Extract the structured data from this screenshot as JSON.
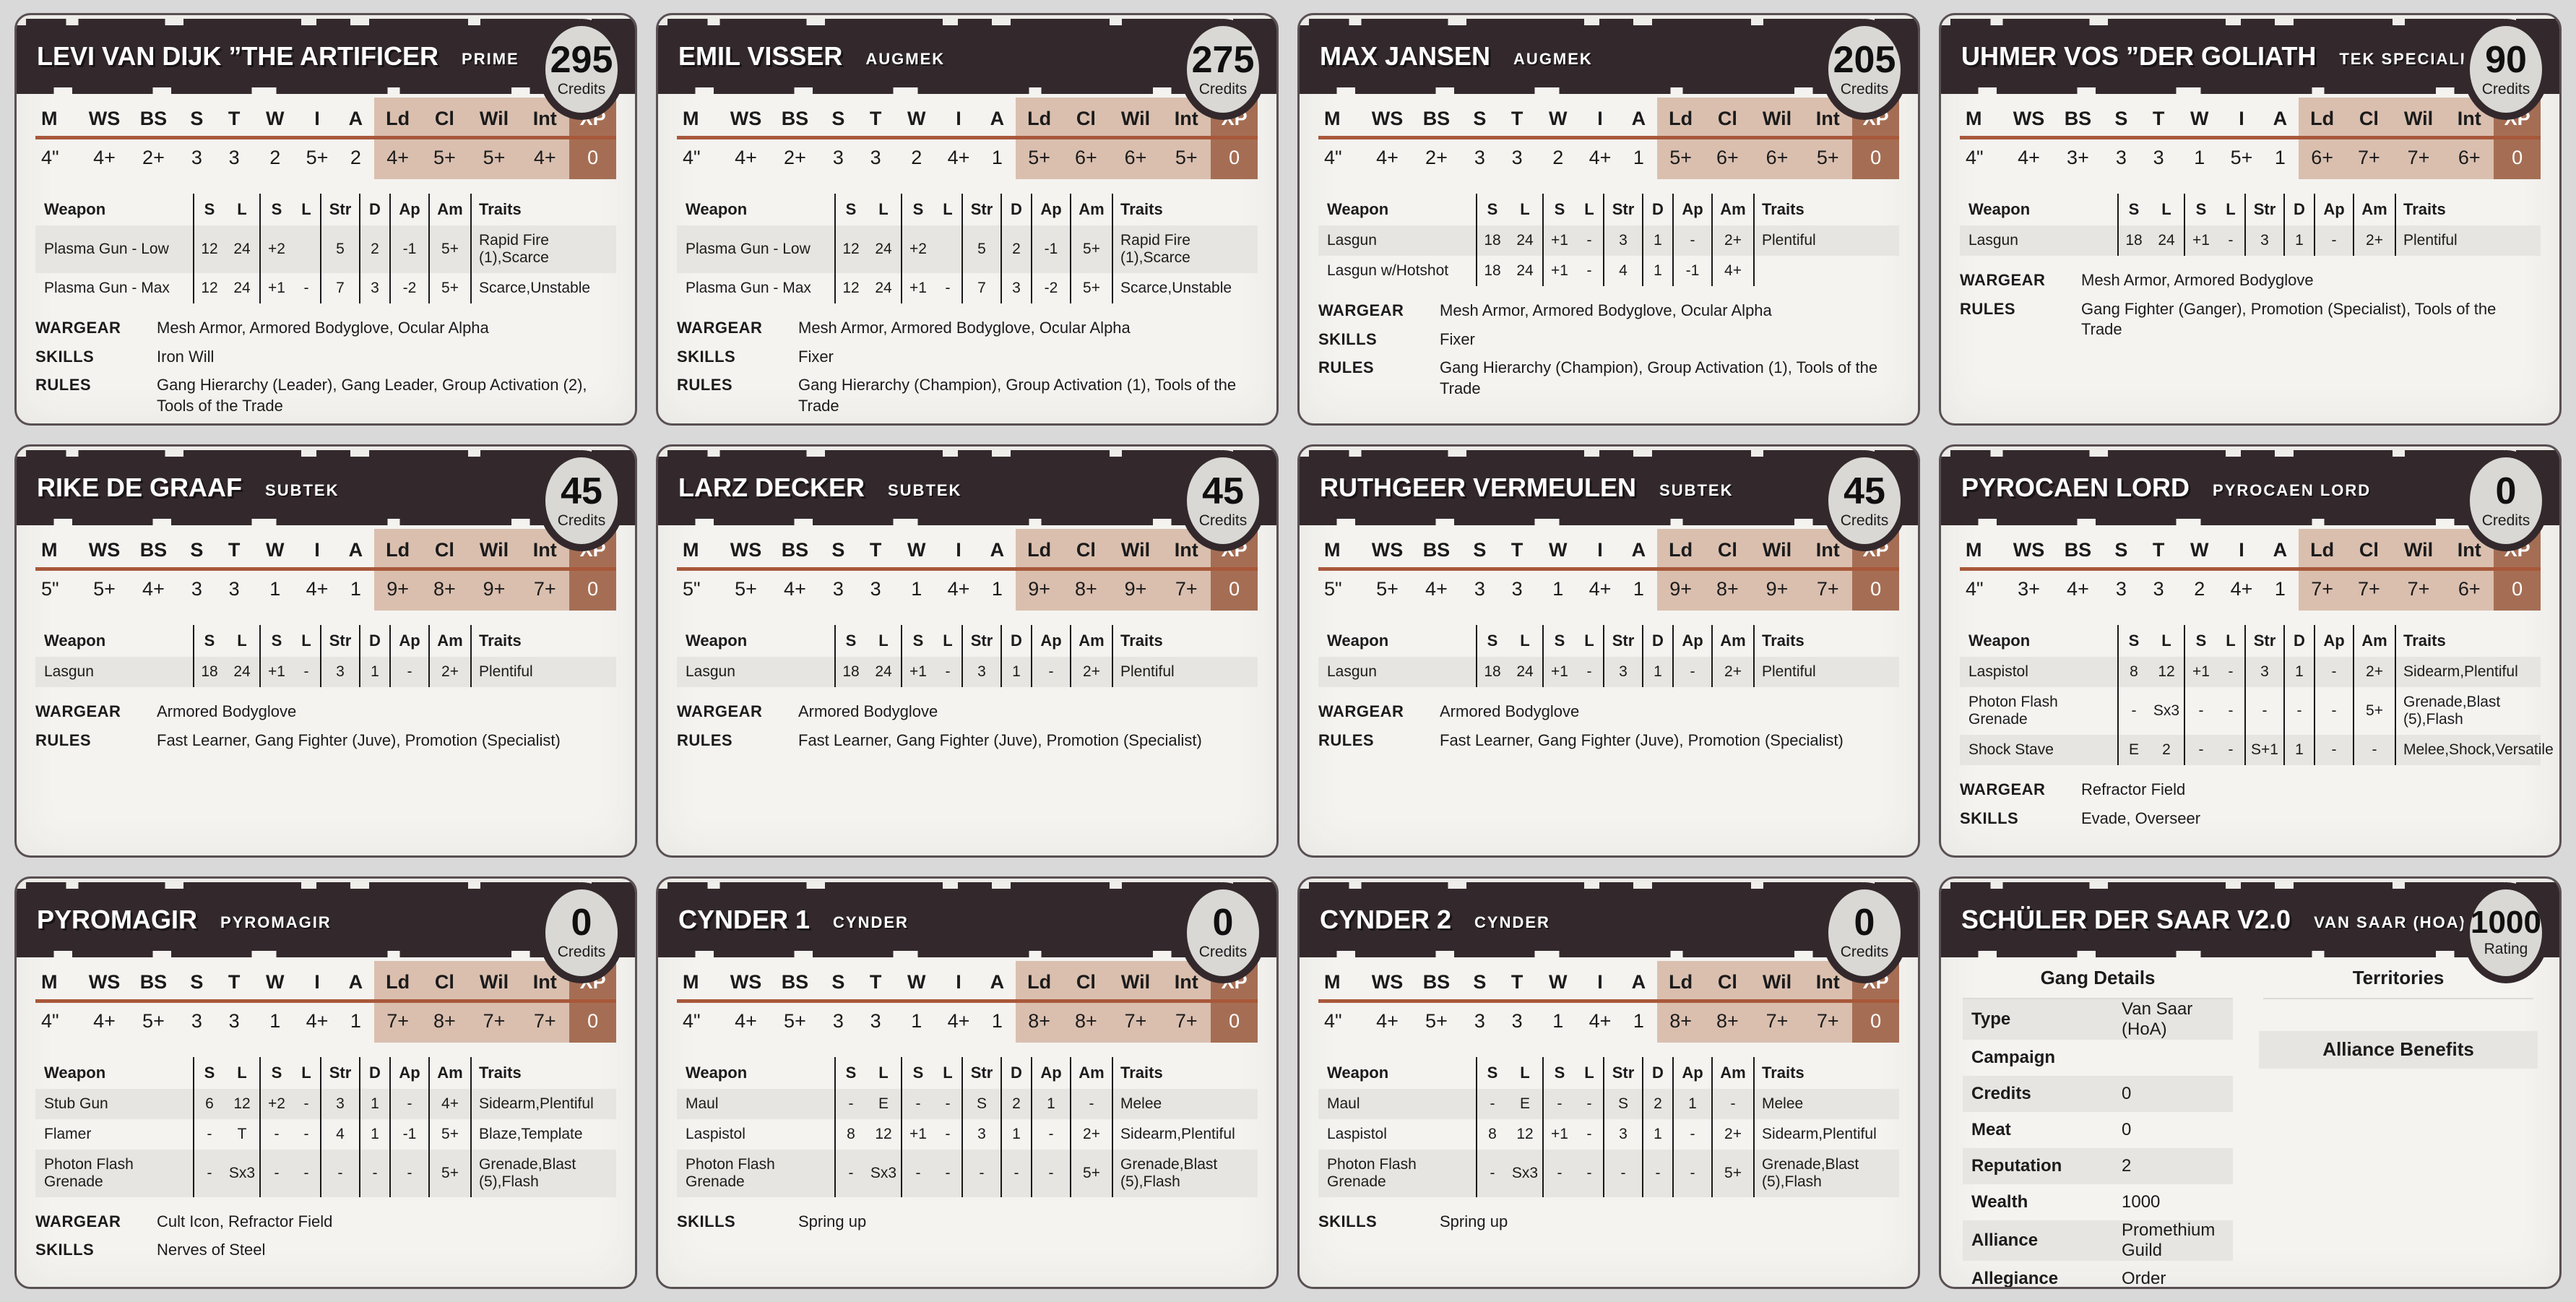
{
  "labels": {
    "credits": "Credits",
    "wargear": "WARGEAR",
    "skills": "SKILLS",
    "rules": "RULES"
  },
  "stat_headers": [
    "M",
    "WS",
    "BS",
    "S",
    "T",
    "W",
    "I",
    "A",
    "Ld",
    "Cl",
    "Wil",
    "Int",
    "XP"
  ],
  "weapon_headers": [
    "Weapon",
    "S",
    "L",
    "S",
    "L",
    "Str",
    "D",
    "Ap",
    "Am",
    "Traits"
  ],
  "colors": {
    "banner": "#33292c",
    "paper": "#f4f3f0",
    "page_bg": "#d9d9d9",
    "stat_divider": "#a8583a",
    "mental_stats_bg": "#dabfaf",
    "xp_bg": "#a56e54",
    "row_stripe": "#e7e5e1",
    "badge_bg": "#d9d8d5"
  },
  "fighters": [
    {
      "name": "LEVI VAN DIJK ”THE ARTIFICER",
      "type": "PRIME",
      "credits": "295",
      "stats": [
        "4\"",
        "4+",
        "2+",
        "3",
        "3",
        "2",
        "5+",
        "2",
        "4+",
        "5+",
        "5+",
        "4+",
        "0"
      ],
      "weapons": [
        {
          "name": "Plasma Gun - Low",
          "cells": [
            "12",
            "24",
            "+2",
            "",
            "5",
            "2",
            "-1",
            "5+"
          ],
          "traits": "Rapid Fire (1),Scarce"
        },
        {
          "name": "Plasma Gun - Max",
          "cells": [
            "12",
            "24",
            "+1",
            "-",
            "7",
            "3",
            "-2",
            "5+"
          ],
          "traits": "Scarce,Unstable"
        }
      ],
      "wargear": "Mesh Armor, Armored Bodyglove, Ocular Alpha",
      "skills": "Iron Will",
      "rules": "Gang Hierarchy (Leader), Gang Leader, Group Activation (2), Tools of the Trade"
    },
    {
      "name": "EMIL VISSER",
      "type": "AUGMEK",
      "credits": "275",
      "stats": [
        "4\"",
        "4+",
        "2+",
        "3",
        "3",
        "2",
        "4+",
        "1",
        "5+",
        "6+",
        "6+",
        "5+",
        "0"
      ],
      "weapons": [
        {
          "name": "Plasma Gun - Low",
          "cells": [
            "12",
            "24",
            "+2",
            "",
            "5",
            "2",
            "-1",
            "5+"
          ],
          "traits": "Rapid Fire (1),Scarce"
        },
        {
          "name": "Plasma Gun - Max",
          "cells": [
            "12",
            "24",
            "+1",
            "-",
            "7",
            "3",
            "-2",
            "5+"
          ],
          "traits": "Scarce,Unstable"
        }
      ],
      "wargear": "Mesh Armor, Armored Bodyglove, Ocular Alpha",
      "skills": "Fixer",
      "rules": "Gang Hierarchy (Champion), Group Activation (1), Tools of the Trade"
    },
    {
      "name": "MAX JANSEN",
      "type": "AUGMEK",
      "credits": "205",
      "stats": [
        "4\"",
        "4+",
        "2+",
        "3",
        "3",
        "2",
        "4+",
        "1",
        "5+",
        "6+",
        "6+",
        "5+",
        "0"
      ],
      "weapons": [
        {
          "name": "Lasgun",
          "cells": [
            "18",
            "24",
            "+1",
            "-",
            "3",
            "1",
            "-",
            "2+"
          ],
          "traits": "Plentiful"
        },
        {
          "name": "Lasgun w/Hotshot",
          "cells": [
            "18",
            "24",
            "+1",
            "-",
            "4",
            "1",
            "-1",
            "4+"
          ],
          "traits": ""
        }
      ],
      "wargear": "Mesh Armor, Armored Bodyglove, Ocular Alpha",
      "skills": "Fixer",
      "rules": "Gang Hierarchy (Champion), Group Activation (1), Tools of the Trade"
    },
    {
      "name": "UHMER VOS ”DER GOLIATH",
      "type": "TEK SPECIALIST",
      "credits": "90",
      "stats": [
        "4\"",
        "4+",
        "3+",
        "3",
        "3",
        "1",
        "5+",
        "1",
        "6+",
        "7+",
        "7+",
        "6+",
        "0"
      ],
      "weapons": [
        {
          "name": "Lasgun",
          "cells": [
            "18",
            "24",
            "+1",
            "-",
            "3",
            "1",
            "-",
            "2+"
          ],
          "traits": "Plentiful"
        }
      ],
      "wargear": "Mesh Armor, Armored Bodyglove",
      "rules": "Gang Fighter (Ganger), Promotion (Specialist), Tools of the Trade"
    },
    {
      "name": "RIKE DE GRAAF",
      "type": "SUBTEK",
      "credits": "45",
      "stats": [
        "5\"",
        "5+",
        "4+",
        "3",
        "3",
        "1",
        "4+",
        "1",
        "9+",
        "8+",
        "9+",
        "7+",
        "0"
      ],
      "weapons": [
        {
          "name": "Lasgun",
          "cells": [
            "18",
            "24",
            "+1",
            "-",
            "3",
            "1",
            "-",
            "2+"
          ],
          "traits": "Plentiful"
        }
      ],
      "wargear": "Armored Bodyglove",
      "rules": "Fast Learner, Gang Fighter (Juve), Promotion (Specialist)"
    },
    {
      "name": "LARZ DECKER",
      "type": "SUBTEK",
      "credits": "45",
      "stats": [
        "5\"",
        "5+",
        "4+",
        "3",
        "3",
        "1",
        "4+",
        "1",
        "9+",
        "8+",
        "9+",
        "7+",
        "0"
      ],
      "weapons": [
        {
          "name": "Lasgun",
          "cells": [
            "18",
            "24",
            "+1",
            "-",
            "3",
            "1",
            "-",
            "2+"
          ],
          "traits": "Plentiful"
        }
      ],
      "wargear": "Armored Bodyglove",
      "rules": "Fast Learner, Gang Fighter (Juve), Promotion (Specialist)"
    },
    {
      "name": "RUTHGEER VERMEULEN",
      "type": "SUBTEK",
      "credits": "45",
      "stats": [
        "5\"",
        "5+",
        "4+",
        "3",
        "3",
        "1",
        "4+",
        "1",
        "9+",
        "8+",
        "9+",
        "7+",
        "0"
      ],
      "weapons": [
        {
          "name": "Lasgun",
          "cells": [
            "18",
            "24",
            "+1",
            "-",
            "3",
            "1",
            "-",
            "2+"
          ],
          "traits": "Plentiful"
        }
      ],
      "wargear": "Armored Bodyglove",
      "rules": "Fast Learner, Gang Fighter (Juve), Promotion (Specialist)"
    },
    {
      "name": "PYROCAEN LORD",
      "type": "PYROCAEN LORD",
      "credits": "0",
      "stats": [
        "4\"",
        "3+",
        "4+",
        "3",
        "3",
        "2",
        "4+",
        "1",
        "7+",
        "7+",
        "7+",
        "6+",
        "0"
      ],
      "weapons": [
        {
          "name": "Laspistol",
          "cells": [
            "8",
            "12",
            "+1",
            "-",
            "3",
            "1",
            "-",
            "2+"
          ],
          "traits": "Sidearm,Plentiful"
        },
        {
          "name": "Photon Flash Grenade",
          "cells": [
            "-",
            "Sx3",
            "-",
            "-",
            "-",
            "-",
            "-",
            "5+"
          ],
          "traits": "Grenade,Blast (5),Flash"
        },
        {
          "name": "Shock Stave",
          "cells": [
            "E",
            "2",
            "-",
            "-",
            "S+1",
            "1",
            "-",
            "-"
          ],
          "traits": "Melee,Shock,Versatile"
        }
      ],
      "wargear": "Refractor Field",
      "skills": "Evade, Overseer"
    },
    {
      "name": "PYROMAGIR",
      "type": "PYROMAGIR",
      "credits": "0",
      "stats": [
        "4\"",
        "4+",
        "5+",
        "3",
        "3",
        "1",
        "4+",
        "1",
        "7+",
        "8+",
        "7+",
        "7+",
        "0"
      ],
      "weapons": [
        {
          "name": "Stub Gun",
          "cells": [
            "6",
            "12",
            "+2",
            "-",
            "3",
            "1",
            "-",
            "4+"
          ],
          "traits": "Sidearm,Plentiful"
        },
        {
          "name": "Flamer",
          "cells": [
            "-",
            "T",
            "-",
            "-",
            "4",
            "1",
            "-1",
            "5+"
          ],
          "traits": "Blaze,Template"
        },
        {
          "name": "Photon Flash Grenade",
          "cells": [
            "-",
            "Sx3",
            "-",
            "-",
            "-",
            "-",
            "-",
            "5+"
          ],
          "traits": "Grenade,Blast (5),Flash"
        }
      ],
      "wargear": "Cult Icon, Refractor Field",
      "skills": "Nerves of Steel"
    },
    {
      "name": "CYNDER 1",
      "type": "CYNDER",
      "credits": "0",
      "stats": [
        "4\"",
        "4+",
        "5+",
        "3",
        "3",
        "1",
        "4+",
        "1",
        "8+",
        "8+",
        "7+",
        "7+",
        "0"
      ],
      "weapons": [
        {
          "name": "Maul",
          "cells": [
            "-",
            "E",
            "-",
            "-",
            "S",
            "2",
            "1",
            "-"
          ],
          "traits": "Melee"
        },
        {
          "name": "Laspistol",
          "cells": [
            "8",
            "12",
            "+1",
            "-",
            "3",
            "1",
            "-",
            "2+"
          ],
          "traits": "Sidearm,Plentiful"
        },
        {
          "name": "Photon Flash Grenade",
          "cells": [
            "-",
            "Sx3",
            "-",
            "-",
            "-",
            "-",
            "-",
            "5+"
          ],
          "traits": "Grenade,Blast (5),Flash"
        }
      ],
      "skills": "Spring up"
    },
    {
      "name": "CYNDER 2",
      "type": "CYNDER",
      "credits": "0",
      "stats": [
        "4\"",
        "4+",
        "5+",
        "3",
        "3",
        "1",
        "4+",
        "1",
        "8+",
        "8+",
        "7+",
        "7+",
        "0"
      ],
      "weapons": [
        {
          "name": "Maul",
          "cells": [
            "-",
            "E",
            "-",
            "-",
            "S",
            "2",
            "1",
            "-"
          ],
          "traits": "Melee"
        },
        {
          "name": "Laspistol",
          "cells": [
            "8",
            "12",
            "+1",
            "-",
            "3",
            "1",
            "-",
            "2+"
          ],
          "traits": "Sidearm,Plentiful"
        },
        {
          "name": "Photon Flash Grenade",
          "cells": [
            "-",
            "Sx3",
            "-",
            "-",
            "-",
            "-",
            "-",
            "5+"
          ],
          "traits": "Grenade,Blast (5),Flash"
        }
      ],
      "skills": "Spring up"
    }
  ],
  "gang": {
    "name": "SCHÜLER DER SAAR V2.0",
    "type": "VAN SAAR (HOA)",
    "rating": "1000",
    "rating_label": "Rating",
    "details_header": "Gang Details",
    "territories_header": "Territories",
    "alliance_benefits_header": "Alliance Benefits",
    "details": [
      {
        "label": "Type",
        "value": "Van Saar (HoA)"
      },
      {
        "label": "Campaign",
        "value": ""
      },
      {
        "label": "Credits",
        "value": "0"
      },
      {
        "label": "Meat",
        "value": "0"
      },
      {
        "label": "Reputation",
        "value": "2"
      },
      {
        "label": "Wealth",
        "value": "1000"
      },
      {
        "label": "Alliance",
        "value": "Promethium Guild"
      },
      {
        "label": "Allegiance",
        "value": "Order"
      }
    ]
  }
}
